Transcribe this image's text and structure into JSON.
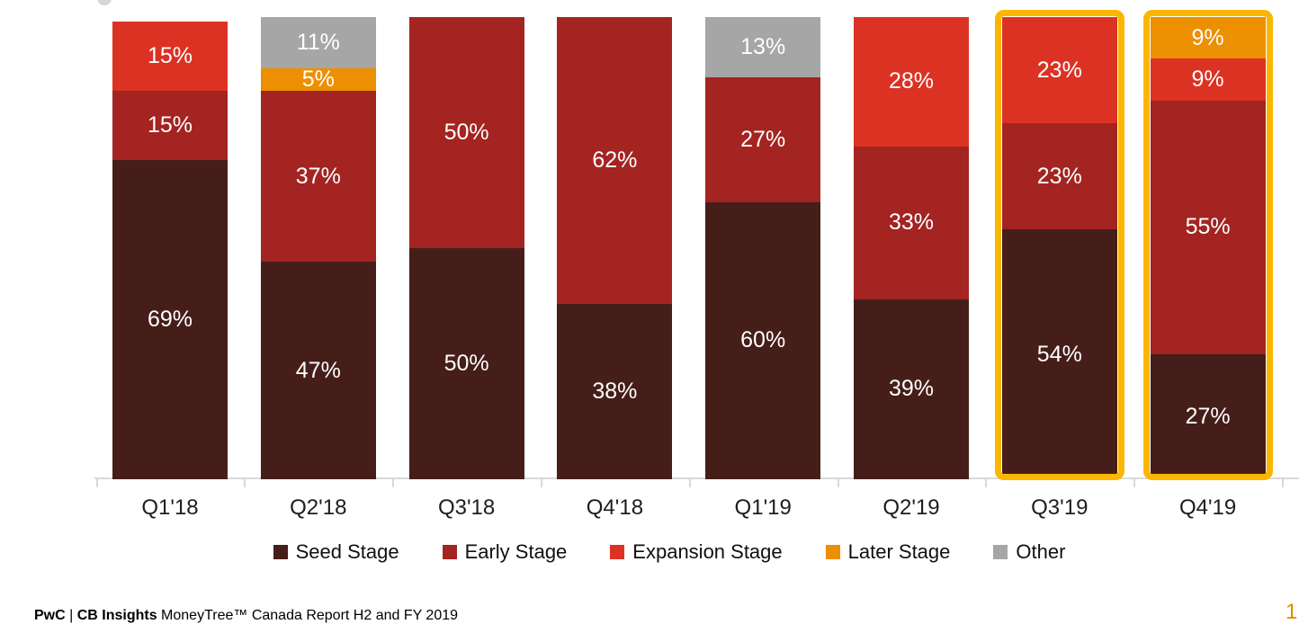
{
  "chart_data": {
    "type": "bar",
    "stacked": true,
    "percent_stacked": true,
    "unit": "%",
    "categories": [
      "Q1'18",
      "Q2'18",
      "Q3'18",
      "Q4'18",
      "Q1'19",
      "Q2'19",
      "Q3'19",
      "Q4'19"
    ],
    "series": [
      {
        "name": "Seed Stage",
        "color": "#461E19",
        "values": [
          69,
          47,
          50,
          38,
          60,
          39,
          54,
          27
        ]
      },
      {
        "name": "Early Stage",
        "color": "#A32420",
        "values": [
          15,
          37,
          50,
          62,
          27,
          33,
          23,
          55
        ]
      },
      {
        "name": "Expansion Stage",
        "color": "#DC3223",
        "values": [
          15,
          0,
          0,
          0,
          0,
          28,
          23,
          9
        ]
      },
      {
        "name": "Later Stage",
        "color": "#EC8F00",
        "values": [
          0,
          5,
          0,
          0,
          0,
          0,
          0,
          9
        ]
      },
      {
        "name": "Other",
        "color": "#A6A6A6",
        "values": [
          0,
          11,
          0,
          0,
          13,
          0,
          0,
          0
        ]
      }
    ],
    "highlighted_categories": [
      "Q3'19",
      "Q4'19"
    ],
    "highlight_color": "#FBB600",
    "ylim": [
      0,
      100
    ],
    "grid": false,
    "legend_position": "bottom",
    "axis_color": "#D9D9D9",
    "value_label_suffix": "%"
  },
  "footer": {
    "pwc": "PwC",
    "separator": " | ",
    "cb_insights": "CB Insights",
    "report": " MoneyTree™ Canada Report H2 and FY 2019"
  },
  "page_number": "1"
}
